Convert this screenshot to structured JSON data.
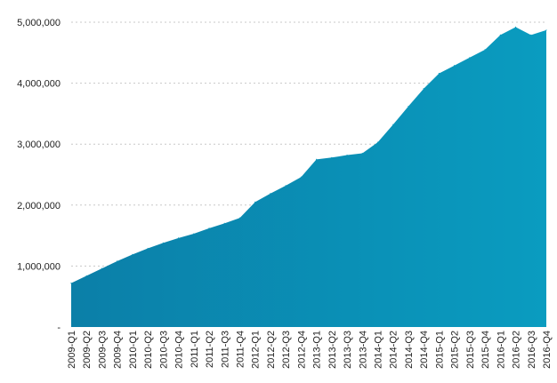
{
  "chart_data": {
    "type": "area",
    "categories": [
      "2009-Q1",
      "2009-Q2",
      "2009-Q3",
      "2009-Q4",
      "2010-Q1",
      "2010-Q2",
      "2010-Q3",
      "2010-Q4",
      "2011-Q1",
      "2011-Q2",
      "2011-Q3",
      "2011-Q4",
      "2012-Q1",
      "2012-Q2",
      "2012-Q3",
      "2012-Q4",
      "2013-Q1",
      "2013-Q2",
      "2013-Q3",
      "2013-Q4",
      "2014-Q1",
      "2014-Q2",
      "2014-Q3",
      "2014-Q4",
      "2015-Q1",
      "2015-Q2",
      "2015-Q3",
      "2015-Q4",
      "2016-Q1",
      "2016-Q2",
      "2016-Q3",
      "2016-Q4"
    ],
    "values": [
      720000,
      840000,
      960000,
      1080000,
      1190000,
      1290000,
      1380000,
      1460000,
      1530000,
      1620000,
      1700000,
      1790000,
      2050000,
      2190000,
      2320000,
      2460000,
      2750000,
      2780000,
      2820000,
      2850000,
      3030000,
      3320000,
      3620000,
      3910000,
      4160000,
      4290000,
      4420000,
      4550000,
      4790000,
      4920000,
      4790000,
      4870000
    ],
    "ylim": [
      0,
      5000000
    ],
    "yticks": [
      0,
      1000000,
      2000000,
      3000000,
      4000000,
      5000000
    ],
    "ytick_labels": [
      "-",
      "1,000,000",
      "2,000,000",
      "3,000,000",
      "4,000,000",
      "5,000,000"
    ],
    "grid": true,
    "legend": "none",
    "title": "",
    "xlabel": "",
    "ylabel": "",
    "fill_color": "#0A9CC0",
    "fill_color_left": "#0B7FA8"
  }
}
